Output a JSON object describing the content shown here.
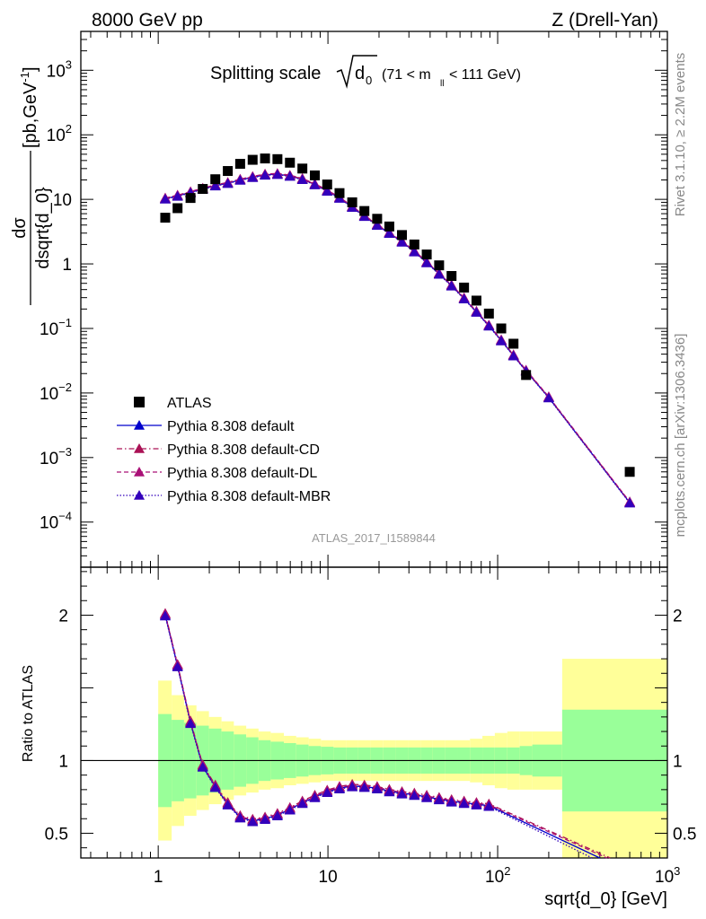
{
  "header": {
    "energy": "8000 GeV pp",
    "process": "Z (Drell-Yan)",
    "title_prefix": "Splitting scale",
    "title_var": "d",
    "title_var_sub": "0",
    "title_cut_a": "(71 < m",
    "title_cut_sub": "ll",
    "title_cut_b": " < 111 GeV)",
    "analysis_id": "ATLAS_2017_I1589844"
  },
  "side_labels": {
    "rivet": "Rivet 3.1.10, ≥ 2.2M events",
    "mcplots": "mcplots.cern.ch [arXiv:1306.3436]"
  },
  "axes": {
    "xlabel": "sqrt{d_0} [GeV]",
    "ylabel_top_num": "dσ",
    "ylabel_top_den": "dsqrt{d_0}",
    "ylabel_top_unit": "[pb,GeV",
    "ylabel_top_unit_sup": "-1",
    "ylabel_top_unit_end": "]",
    "ylabel_bottom": "Ratio to ATLAS",
    "x_ticks": [
      {
        "value": 1,
        "label": "1"
      },
      {
        "value": 10,
        "label": "10"
      },
      {
        "value": 100,
        "label": "10",
        "sup": "2"
      },
      {
        "value": 1000,
        "label": "10",
        "sup": "3"
      }
    ],
    "y_ticks_top": [
      {
        "value": 1000,
        "label": "10",
        "sup": "3"
      },
      {
        "value": 100,
        "label": "10",
        "sup": "2"
      },
      {
        "value": 10,
        "label": "10"
      },
      {
        "value": 1,
        "label": "1"
      },
      {
        "value": 0.1,
        "label": "10",
        "sup": "−1"
      },
      {
        "value": 0.01,
        "label": "10",
        "sup": "−2"
      },
      {
        "value": 0.001,
        "label": "10",
        "sup": "−3"
      },
      {
        "value": 0.0001,
        "label": "10",
        "sup": "−4"
      }
    ],
    "y_ticks_bottom": [
      {
        "value": 2,
        "label": "2"
      },
      {
        "value": 1,
        "label": "1"
      },
      {
        "value": 0.5,
        "label": "0.5"
      }
    ]
  },
  "legend": [
    {
      "label": "ATLAS",
      "marker": "square",
      "line": "none",
      "color": "#000000"
    },
    {
      "label": "Pythia 8.308 default",
      "marker": "triangle",
      "line": "solid",
      "color": "#0000cc"
    },
    {
      "label": "Pythia 8.308 default-CD",
      "marker": "triangle",
      "line": "dashdot",
      "color": "#aa1155"
    },
    {
      "label": "Pythia 8.308 default-DL",
      "marker": "triangle",
      "line": "dashed",
      "color": "#aa1177"
    },
    {
      "label": "Pythia 8.308 default-MBR",
      "marker": "triangle",
      "line": "dotted",
      "color": "#3300bb"
    }
  ],
  "chart_data": {
    "type": "scatter",
    "x_scale": "log",
    "xlim": [
      0.35,
      1000
    ],
    "top_panel": {
      "y_scale": "log",
      "ylim": [
        2e-05,
        4000
      ],
      "atlas": {
        "x": [
          1.1,
          1.3,
          1.55,
          1.83,
          2.17,
          2.57,
          3.04,
          3.6,
          4.26,
          5.04,
          5.97,
          7.07,
          8.37,
          9.9,
          11.7,
          13.9,
          16.4,
          19.5,
          23.0,
          27.3,
          32.3,
          38.2,
          45.2,
          53.5,
          63.4,
          75.0,
          88.8,
          105,
          124,
          147,
          200,
          600
        ],
        "y": [
          5.2,
          7.3,
          10.5,
          14.5,
          20.5,
          27.5,
          35.5,
          41,
          43,
          42,
          37,
          30,
          23.5,
          17,
          12.5,
          9,
          6.6,
          5,
          3.8,
          2.8,
          2.0,
          1.4,
          0.95,
          0.65,
          0.43,
          0.27,
          0.17,
          0.1,
          0.058,
          0.019,
          0.019,
          0.0006
        ]
      },
      "mc": {
        "x": [
          1.1,
          1.3,
          1.55,
          1.83,
          2.17,
          2.57,
          3.04,
          3.6,
          4.26,
          5.04,
          5.97,
          7.07,
          8.37,
          9.9,
          11.7,
          13.9,
          16.4,
          19.5,
          23.0,
          27.3,
          32.3,
          38.2,
          45.2,
          53.5,
          63.4,
          75.0,
          88.8,
          105,
          124,
          147,
          200,
          600
        ],
        "y": [
          10.2,
          11.3,
          12.8,
          14.5,
          16.3,
          17.8,
          20,
          22,
          24,
          24.5,
          23,
          20.5,
          17,
          13.5,
          10.5,
          7.6,
          5.5,
          4.0,
          3.0,
          2.2,
          1.55,
          1.05,
          0.7,
          0.46,
          0.29,
          0.18,
          0.11,
          0.065,
          0.038,
          0.022,
          0.0085,
          0.0002
        ]
      }
    },
    "bottom_panel": {
      "y_scale": "linear",
      "ylim": [
        0.33,
        2.33
      ],
      "reference": 1,
      "ratio": {
        "x": [
          1.1,
          1.3,
          1.55,
          1.83,
          2.17,
          2.57,
          3.04,
          3.6,
          4.26,
          5.04,
          5.97,
          7.07,
          8.37,
          9.9,
          11.7,
          13.9,
          16.4,
          19.5,
          23.0,
          27.3,
          32.3,
          38.2,
          45.2,
          53.5,
          63.4,
          75.0,
          88.8
        ],
        "y": [
          2.0,
          1.65,
          1.26,
          0.96,
          0.82,
          0.7,
          0.61,
          0.585,
          0.6,
          0.625,
          0.665,
          0.71,
          0.75,
          0.785,
          0.81,
          0.825,
          0.82,
          0.81,
          0.79,
          0.775,
          0.765,
          0.75,
          0.735,
          0.72,
          0.71,
          0.7,
          0.69
        ]
      },
      "ratio_tail": [
        {
          "name": "Pythia 8.308 default",
          "x": [
            88.8,
            400
          ],
          "y": [
            0.69,
            0.33
          ]
        },
        {
          "name": "Pythia 8.308 default-CD",
          "x": [
            88.8,
            460
          ],
          "y": [
            0.69,
            0.33
          ]
        },
        {
          "name": "Pythia 8.308 default-DL",
          "x": [
            88.8,
            440
          ],
          "y": [
            0.69,
            0.33
          ]
        },
        {
          "name": "Pythia 8.308 default-MBR",
          "x": [
            88.8,
            360
          ],
          "y": [
            0.69,
            0.33
          ]
        }
      ],
      "uncertainty_bins": {
        "edges": [
          1.0,
          1.2,
          1.42,
          1.68,
          1.99,
          2.36,
          2.79,
          3.3,
          3.9,
          4.6,
          5.5,
          6.5,
          7.7,
          9.1,
          10.8,
          12.8,
          15.1,
          17.9,
          21.2,
          25.1,
          29.7,
          35.1,
          41.5,
          49.1,
          58.1,
          68.7,
          81.3,
          96.2,
          114,
          135,
          160,
          240,
          1000
        ],
        "inner_half": [
          0.32,
          0.28,
          0.26,
          0.24,
          0.22,
          0.2,
          0.18,
          0.16,
          0.14,
          0.13,
          0.12,
          0.11,
          0.1,
          0.095,
          0.09,
          0.09,
          0.09,
          0.09,
          0.09,
          0.09,
          0.09,
          0.09,
          0.09,
          0.09,
          0.09,
          0.09,
          0.09,
          0.09,
          0.09,
          0.1,
          0.11,
          0.35
        ],
        "outer_half": [
          0.55,
          0.45,
          0.38,
          0.34,
          0.3,
          0.27,
          0.24,
          0.22,
          0.2,
          0.19,
          0.17,
          0.16,
          0.15,
          0.14,
          0.14,
          0.14,
          0.14,
          0.14,
          0.14,
          0.14,
          0.14,
          0.14,
          0.14,
          0.14,
          0.14,
          0.15,
          0.17,
          0.19,
          0.2,
          0.2,
          0.2,
          0.7
        ]
      }
    },
    "colors": {
      "band_inner": "#99ff99",
      "band_outer": "#ffff99"
    }
  }
}
